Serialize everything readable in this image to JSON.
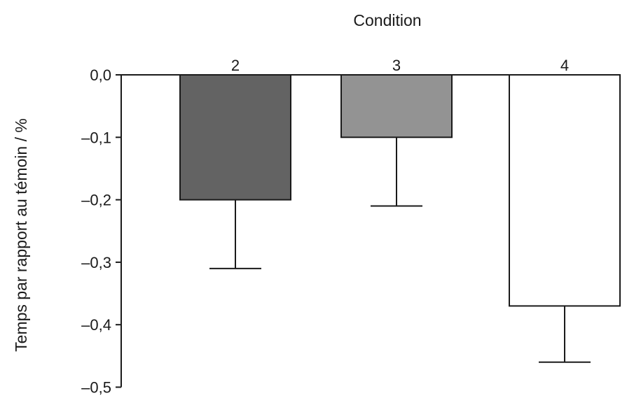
{
  "chart_data": {
    "type": "bar",
    "title": "Condition",
    "xlabel": "Condition",
    "ylabel": "Temps par rapport au témoin / %",
    "categories": [
      "2",
      "3",
      "4"
    ],
    "values": [
      -0.2,
      -0.1,
      -0.37
    ],
    "errors": [
      0.11,
      0.11,
      0.09
    ],
    "ylim": [
      -0.5,
      0.0
    ],
    "yticks": [
      0.0,
      -0.1,
      -0.2,
      -0.3,
      -0.4,
      -0.5
    ],
    "ytick_labels": [
      "0,0",
      "–0,1",
      "–0,2",
      "–0,3",
      "–0,4",
      "–0,5"
    ],
    "bar_colors": [
      "#636363",
      "#939393",
      "#ffffff"
    ],
    "edge_color": "#1a1a1a",
    "grid": false,
    "legend": false
  }
}
